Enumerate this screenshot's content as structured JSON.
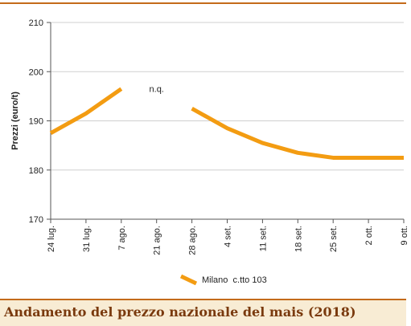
{
  "chart_data": {
    "type": "line",
    "title": "",
    "xlabel": "",
    "ylabel": "Prezzi (euro/t)",
    "ylim": [
      170,
      210
    ],
    "yticks": [
      170,
      180,
      190,
      200,
      210
    ],
    "categories": [
      "24 lug.",
      "31 lug.",
      "7 ago.",
      "21 ago.",
      "28 ago.",
      "4 set.",
      "11 set.",
      "18 set.",
      "25 set.",
      "2 ott.",
      "9 ott."
    ],
    "series": [
      {
        "name": "Milano  c.tto 103",
        "color": "#f39c12",
        "values": [
          187.5,
          191.5,
          196.5,
          null,
          192.5,
          188.5,
          185.5,
          183.5,
          182.5,
          182.5,
          182.5
        ]
      }
    ],
    "annotations": [
      {
        "text": "n.q.",
        "category": "21 ago.",
        "y": 196.5
      }
    ],
    "grid": "horizontal",
    "legend": "bottom"
  },
  "caption": "Andamento del prezzo nazionale del mais (2018)"
}
